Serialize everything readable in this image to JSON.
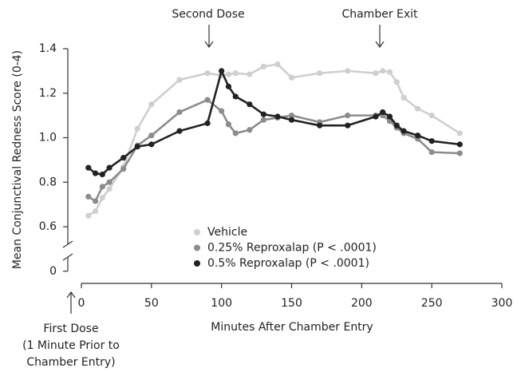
{
  "chart_data": {
    "type": "line",
    "y_label": "Mean Conjunctival Redness Score (0-4)",
    "x_label": "Minutes After Chamber Entry",
    "annotations": {
      "second_dose": "Second Dose",
      "chamber_exit": "Chamber Exit",
      "first_dose": [
        "First Dose",
        "(1 Minute Prior to",
        "Chamber Entry)"
      ]
    },
    "x": [
      5,
      10,
      15,
      20,
      30,
      40,
      50,
      70,
      90,
      100,
      105,
      110,
      120,
      130,
      140,
      150,
      170,
      190,
      210,
      215,
      220,
      225,
      230,
      240,
      250,
      270
    ],
    "series": [
      {
        "name": "Vehicle",
        "color": "#cfcfcf",
        "values": [
          0.65,
          0.67,
          0.73,
          0.77,
          0.87,
          1.04,
          1.15,
          1.26,
          1.29,
          1.28,
          1.285,
          1.29,
          1.285,
          1.32,
          1.33,
          1.27,
          1.29,
          1.3,
          1.29,
          1.3,
          1.295,
          1.25,
          1.18,
          1.13,
          1.1,
          1.02
        ]
      },
      {
        "name": "0.25% Reproxalap (P < .0001)",
        "color": "#8c8c8c",
        "values": [
          0.735,
          0.715,
          0.78,
          0.8,
          0.86,
          0.965,
          1.01,
          1.115,
          1.17,
          1.12,
          1.06,
          1.02,
          1.035,
          1.08,
          1.09,
          1.1,
          1.07,
          1.1,
          1.1,
          1.1,
          1.075,
          1.045,
          1.02,
          0.995,
          0.935,
          0.93
        ]
      },
      {
        "name": "0.5% Reproxalap (P < .0001)",
        "color": "#222222",
        "values": [
          0.865,
          0.84,
          0.835,
          0.865,
          0.91,
          0.96,
          0.97,
          1.03,
          1.065,
          1.3,
          1.23,
          1.185,
          1.15,
          1.105,
          1.095,
          1.08,
          1.055,
          1.055,
          1.095,
          1.115,
          1.095,
          1.055,
          1.03,
          1.01,
          0.985,
          0.97
        ]
      }
    ],
    "xlim": [
      0,
      300
    ],
    "xticks": [
      0,
      50,
      100,
      150,
      200,
      250,
      300
    ],
    "ylim": [
      0,
      1.4
    ],
    "yticks": [
      0,
      0.6,
      0.8,
      {
        "value": 1.0,
        "label": "1.0"
      },
      1.2,
      1.4
    ],
    "axis_break": true,
    "legend": "lower center"
  }
}
